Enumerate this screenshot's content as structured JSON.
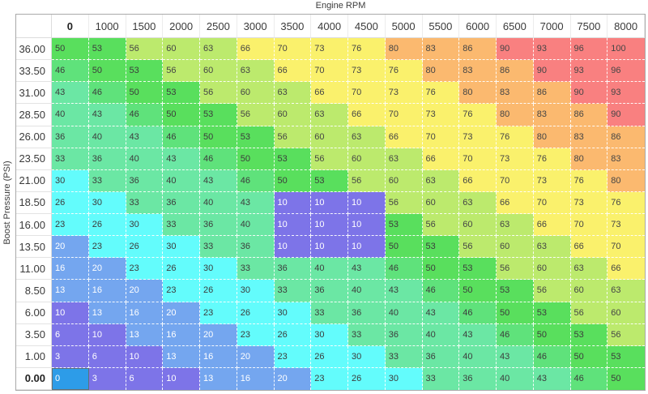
{
  "axes": {
    "x_label": "Engine RPM",
    "y_label": "Boost Pressure (PSI)"
  },
  "table": {
    "columns": [
      "0",
      "1000",
      "1500",
      "2000",
      "2500",
      "3000",
      "3500",
      "4000",
      "4500",
      "5000",
      "5500",
      "6000",
      "6500",
      "7000",
      "7500",
      "8000"
    ],
    "rows": [
      "36.00",
      "33.50",
      "31.00",
      "28.50",
      "26.00",
      "23.50",
      "21.00",
      "18.50",
      "16.00",
      "13.50",
      "11.00",
      "8.50",
      "6.00",
      "3.50",
      "1.00",
      "0.00"
    ],
    "values": [
      [
        50,
        53,
        56,
        60,
        63,
        66,
        70,
        73,
        76,
        80,
        83,
        86,
        90,
        93,
        96,
        100
      ],
      [
        46,
        50,
        53,
        56,
        60,
        63,
        66,
        70,
        73,
        76,
        80,
        83,
        86,
        90,
        93,
        96
      ],
      [
        43,
        46,
        50,
        53,
        56,
        60,
        63,
        66,
        70,
        73,
        76,
        80,
        83,
        86,
        90,
        93
      ],
      [
        40,
        43,
        46,
        50,
        53,
        56,
        60,
        63,
        66,
        70,
        73,
        76,
        80,
        83,
        86,
        90
      ],
      [
        36,
        40,
        43,
        46,
        50,
        53,
        56,
        60,
        63,
        66,
        70,
        73,
        76,
        80,
        83,
        86
      ],
      [
        33,
        36,
        40,
        43,
        46,
        50,
        53,
        56,
        60,
        63,
        66,
        70,
        73,
        76,
        80,
        83
      ],
      [
        30,
        33,
        36,
        40,
        43,
        46,
        50,
        53,
        56,
        60,
        63,
        66,
        70,
        73,
        76,
        80
      ],
      [
        26,
        30,
        33,
        36,
        40,
        43,
        10,
        10,
        10,
        56,
        60,
        63,
        66,
        70,
        73,
        76
      ],
      [
        23,
        26,
        30,
        33,
        36,
        40,
        10,
        10,
        10,
        53,
        56,
        60,
        63,
        66,
        70,
        73
      ],
      [
        20,
        23,
        26,
        30,
        33,
        36,
        10,
        10,
        10,
        50,
        53,
        56,
        60,
        63,
        66,
        70
      ],
      [
        16,
        20,
        23,
        26,
        30,
        33,
        36,
        40,
        43,
        46,
        50,
        53,
        56,
        60,
        63,
        66
      ],
      [
        13,
        16,
        20,
        23,
        26,
        30,
        33,
        36,
        40,
        43,
        46,
        50,
        53,
        56,
        60,
        63
      ],
      [
        10,
        13,
        16,
        20,
        23,
        26,
        30,
        33,
        36,
        40,
        43,
        46,
        50,
        53,
        56,
        60
      ],
      [
        6,
        10,
        13,
        16,
        20,
        23,
        26,
        30,
        33,
        36,
        40,
        43,
        46,
        50,
        53,
        56
      ],
      [
        3,
        6,
        10,
        13,
        16,
        20,
        23,
        26,
        30,
        33,
        36,
        40,
        43,
        46,
        50,
        53
      ],
      [
        0,
        3,
        6,
        10,
        13,
        16,
        20,
        23,
        26,
        30,
        33,
        36,
        40,
        43,
        46,
        50
      ]
    ],
    "selected": {
      "row_index": 15,
      "col_index": 0
    }
  },
  "palette": {
    "buckets": [
      {
        "min": 90,
        "bg": "#F98080",
        "fg": "#454545"
      },
      {
        "min": 80,
        "bg": "#FBB96F",
        "fg": "#454545"
      },
      {
        "min": 66,
        "bg": "#FAF16C",
        "fg": "#454545"
      },
      {
        "min": 56,
        "bg": "#BCEA6D",
        "fg": "#454545"
      },
      {
        "min": 50,
        "bg": "#59DF5D",
        "fg": "#3c3c3c"
      },
      {
        "min": 46,
        "bg": "#5FE27B",
        "fg": "#3c3c3c"
      },
      {
        "min": 33,
        "bg": "#6BE7A4",
        "fg": "#3c3c3c"
      },
      {
        "min": 23,
        "bg": "#63FCFC",
        "fg": "#3c3c3c"
      },
      {
        "min": 13,
        "bg": "#74A6EF",
        "fg": "#FFFFFF"
      },
      {
        "min": 0,
        "bg": "#7D74E8",
        "fg": "#FFFFFF"
      }
    ],
    "selected_bg": "#2D9CE8",
    "selected_fg": "#FFFFFF",
    "selected_border": "#5F7078"
  }
}
